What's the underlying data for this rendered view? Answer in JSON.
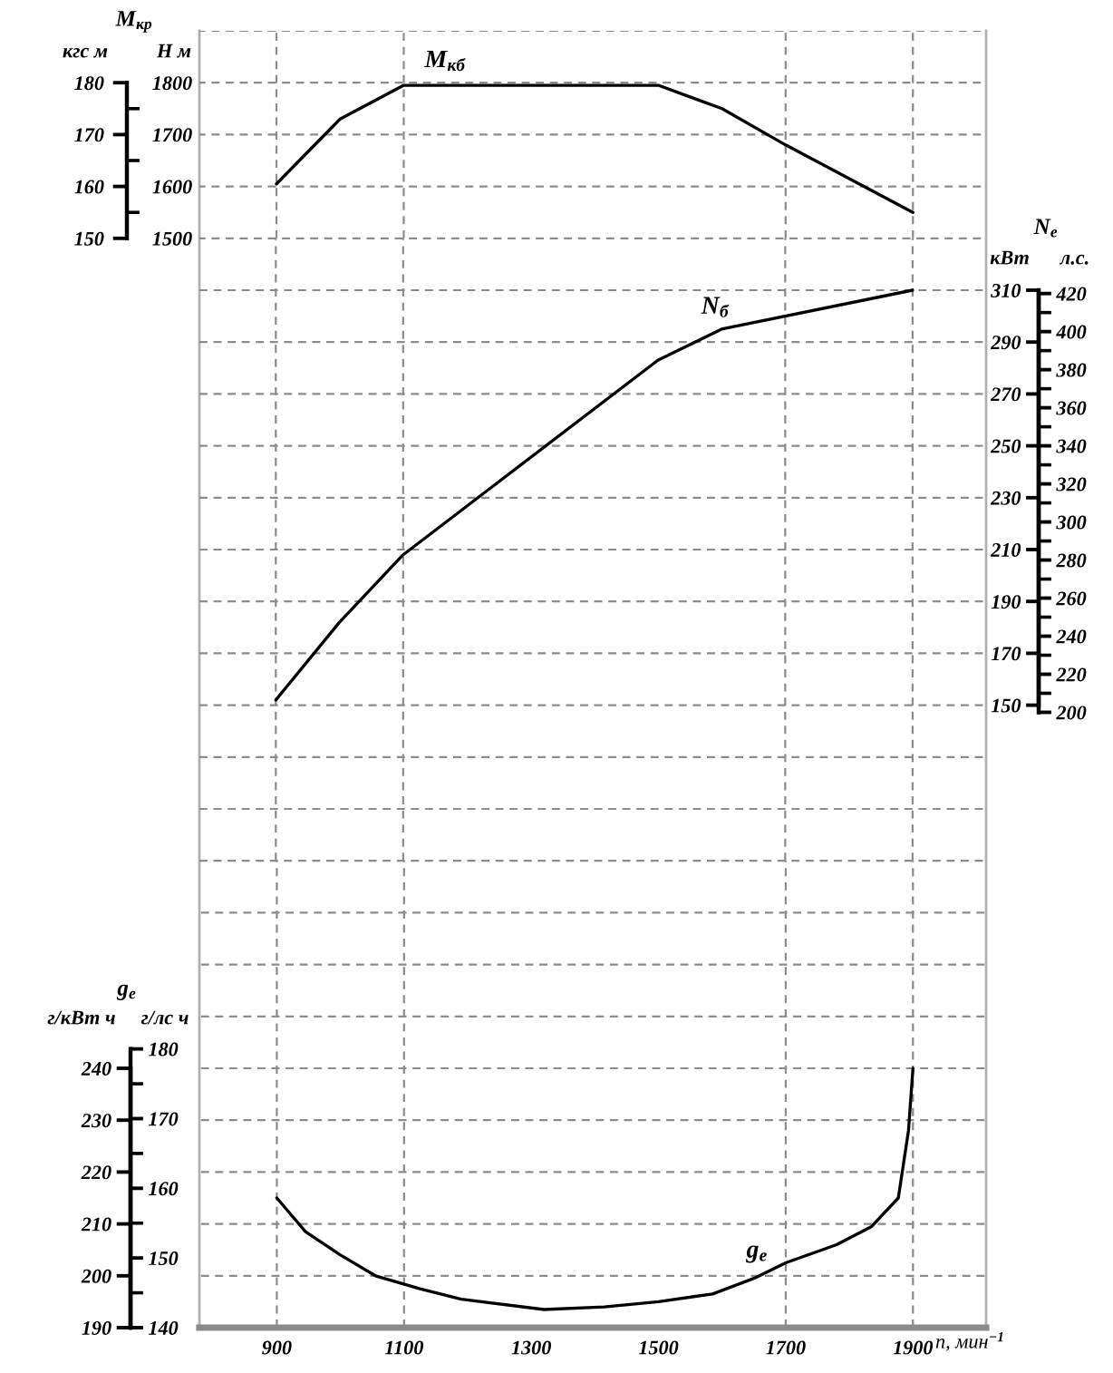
{
  "chart_data": [
    {
      "type": "line",
      "title": "M$_{кр}$",
      "ylabel": "Н м",
      "y2label": "кгс м",
      "x": [
        900,
        1000,
        1100,
        1500,
        1600,
        1700,
        1900
      ],
      "series": [
        {
          "color": "#000000",
          "values": [
            1605,
            1730,
            1795,
            1795,
            1750,
            1680,
            1550
          ]
        }
      ],
      "annotations": [
        {
          "text": "M$_{кб}$",
          "x": 1165,
          "y": 1795
        }
      ],
      "xlim": [
        665,
        2015
      ],
      "xticks": [
        900,
        1100,
        1300,
        1500,
        1700,
        1900
      ],
      "ylim": [
        1500,
        1900
      ],
      "yticks": [
        1500,
        {
          "value": 1550,
          "label": null
        },
        1600,
        {
          "value": 1650,
          "label": null
        },
        1700,
        {
          "value": 1750,
          "label": null
        },
        1800,
        {
          "value": 1900,
          "label": null
        }
      ],
      "y2lim": [
        150,
        190
      ],
      "y2ticks": [
        150,
        160,
        170,
        180
      ],
      "ref_lines": [
        {
          "axis": "x",
          "value": 900,
          "line_style": "dashed"
        },
        {
          "axis": "x",
          "value": 1100,
          "line_style": "dashed"
        },
        {
          "axis": "x",
          "value": 1700,
          "line_style": "dashed"
        },
        {
          "axis": "x",
          "value": 1900,
          "line_style": "dashed"
        }
      ],
      "grid": "y",
      "tick_labels": "y",
      "line_style": "solid"
    },
    {
      "type": "line",
      "title": "N$_{е}$",
      "ylabel": "кВт",
      "y2label": "л.с.",
      "x": [
        900,
        1000,
        1100,
        1500,
        1600,
        1900
      ],
      "series": [
        {
          "color": "#000000",
          "values": [
            152,
            182,
            208,
            283,
            295,
            310
          ]
        }
      ],
      "annotations": [
        {
          "text": "N$_{б}$",
          "x": 1590,
          "y": 294
        }
      ],
      "xlim": [
        780,
        2098
      ],
      "xticks": [
        900,
        1100,
        1300,
        1500,
        1700,
        1900
      ],
      "ylim": [
        90,
        330
      ],
      "yticks": [
        {
          "value": 90,
          "label": null
        },
        {
          "value": 110,
          "label": null
        },
        {
          "value": 130,
          "label": null
        },
        150,
        170,
        190,
        210,
        230,
        250,
        270,
        290,
        310
      ],
      "y2lim": [
        122,
        449
      ],
      "y2ticks": [
        200,
        {
          "value": 210,
          "label": null
        },
        220,
        {
          "value": 230,
          "label": null
        },
        240,
        {
          "value": 250,
          "label": null
        },
        260,
        {
          "value": 270,
          "label": null
        },
        280,
        {
          "value": 290,
          "label": null
        },
        300,
        {
          "value": 310,
          "label": null
        },
        320,
        {
          "value": 330,
          "label": null
        },
        340,
        {
          "value": 350,
          "label": null
        },
        360,
        {
          "value": 370,
          "label": null
        },
        380,
        {
          "value": 390,
          "label": null
        },
        400,
        {
          "value": 410,
          "label": null
        },
        420
      ],
      "ref_lines": [
        {
          "axis": "x",
          "value": 900,
          "line_style": "dashed"
        },
        {
          "axis": "x",
          "value": 1100,
          "line_style": "dashed"
        },
        {
          "axis": "x",
          "value": 1700,
          "line_style": "dashed"
        },
        {
          "axis": "x",
          "value": 1900,
          "line_style": "dashed"
        }
      ],
      "grid": "y",
      "tick_labels": "y",
      "line_style": "solid"
    },
    {
      "type": "line",
      "title": "g$_{е}$",
      "ylabel": "г/кВт ч",
      "y2label": "г/лс ч",
      "xlabel": "n, мин$^{−1}$",
      "x": [
        900,
        945,
        1000,
        1055,
        1125,
        1190,
        1320,
        1415,
        1500,
        1585,
        1650,
        1700,
        1780,
        1835,
        1877,
        1893,
        1900
      ],
      "series": [
        {
          "color": "#000000",
          "values": [
            215,
            208.5,
            204,
            200,
            197.5,
            195.5,
            193.5,
            194,
            195,
            196.5,
            199.5,
            202.5,
            206,
            209.5,
            215,
            228,
            240
          ]
        }
      ],
      "annotations": [
        {
          "text": "g$_{e}$",
          "x": 1655,
          "y": 200
        }
      ],
      "xlim": [
        670,
        2015
      ],
      "xticks": [
        900,
        1100,
        1300,
        1500,
        1700,
        1900
      ],
      "ylim": [
        190,
        280
      ],
      "yticks": [
        190,
        200,
        210,
        220,
        230,
        240,
        {
          "value": 250,
          "label": null
        },
        {
          "value": 260,
          "label": null
        },
        {
          "value": 270,
          "label": null
        }
      ],
      "y2lim": [
        140,
        207
      ],
      "y2ticks": [
        140,
        {
          "value": 145,
          "label": null
        },
        150,
        {
          "value": 155,
          "label": null
        },
        160,
        {
          "value": 165,
          "label": null
        },
        170,
        {
          "value": 175,
          "label": null
        },
        180
      ],
      "ref_lines": [
        {
          "axis": "x",
          "value": 900,
          "line_style": "dashed"
        },
        {
          "axis": "x",
          "value": 1100,
          "line_style": "dashed"
        },
        {
          "axis": "x",
          "value": 1700,
          "line_style": "dashed"
        },
        {
          "axis": "x",
          "value": 1900,
          "line_style": "dashed"
        }
      ],
      "grid": "y",
      "line_style": "solid"
    }
  ]
}
